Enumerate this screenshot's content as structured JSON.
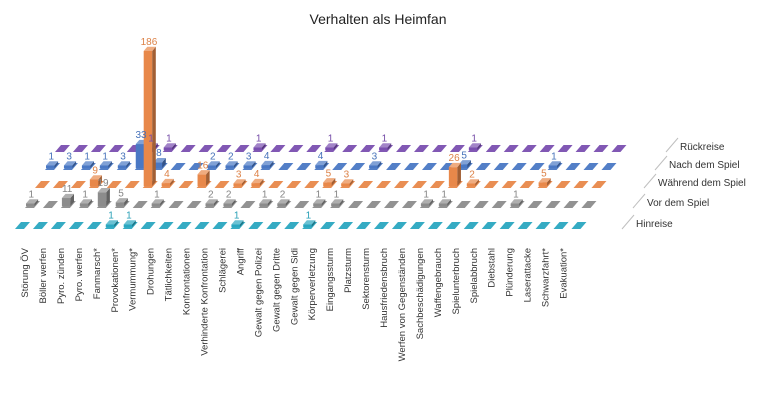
{
  "chart_data": {
    "type": "bar",
    "title": "Verhalten als Heimfan",
    "categories": [
      "Störung ÖV",
      "Böller werfen",
      "Pyro. zünden",
      "Pyro. werfen",
      "Fanmarsch*",
      "Provokationen*",
      "Vermummung*",
      "Drohungen",
      "Tätlichkeiten",
      "Konfrontationen",
      "Verhinderte Konfrontation",
      "Schlägerei",
      "Angriff",
      "Gewalt gegen Polizei",
      "Gewalt gegen Dritte",
      "Gewalt gegen Sidi",
      "Körperverletzung",
      "Eingangssturm",
      "Platzsturm",
      "Sektorensturm",
      "Hausfriedensbruch",
      "Werfen von Gegenständen",
      "Sachbeschädigungen",
      "Waffengebrauch",
      "Spielunterbruch",
      "Spielabbruch",
      "Diebstahl",
      "Plünderung",
      "Laserattacke",
      "Schwarzfahrt*",
      "Evakuation*"
    ],
    "series": [
      {
        "name": "Hinreise",
        "color": "#2aa7c0",
        "values": [
          0,
          0,
          0,
          0,
          0,
          1,
          1,
          0,
          0,
          0,
          0,
          0,
          1,
          0,
          0,
          0,
          1,
          0,
          0,
          0,
          0,
          0,
          0,
          0,
          0,
          0,
          0,
          0,
          0,
          0,
          0
        ]
      },
      {
        "name": "Vor dem Spiel",
        "color": "#8c8c8c",
        "values": [
          1,
          0,
          11,
          1,
          19,
          5,
          0,
          1,
          0,
          0,
          2,
          2,
          0,
          1,
          2,
          0,
          1,
          1,
          0,
          0,
          0,
          0,
          1,
          1,
          0,
          0,
          0,
          1,
          0,
          0,
          0
        ]
      },
      {
        "name": "Während dem Spiel",
        "color": "#e8884a",
        "values": [
          0,
          0,
          0,
          9,
          0,
          0,
          186,
          4,
          0,
          16,
          0,
          3,
          4,
          0,
          0,
          0,
          5,
          3,
          0,
          0,
          0,
          0,
          0,
          26,
          2,
          0,
          0,
          0,
          5,
          0,
          0
        ]
      },
      {
        "name": "Nach dem Spiel",
        "color": "#4a78c4",
        "values": [
          1,
          3,
          1,
          1,
          3,
          33,
          8,
          0,
          0,
          2,
          2,
          3,
          4,
          0,
          0,
          4,
          0,
          0,
          3,
          0,
          0,
          0,
          0,
          5,
          0,
          0,
          0,
          0,
          1,
          0,
          0
        ]
      },
      {
        "name": "Rückreise",
        "color": "#7a4fb0",
        "values": [
          0,
          0,
          0,
          0,
          0,
          1,
          1,
          0,
          0,
          0,
          0,
          1,
          0,
          0,
          0,
          1,
          0,
          0,
          1,
          0,
          0,
          0,
          0,
          1,
          0,
          0,
          0,
          0,
          0,
          0,
          0
        ]
      }
    ],
    "legend": "series labels at right end of each row",
    "grid": false
  }
}
